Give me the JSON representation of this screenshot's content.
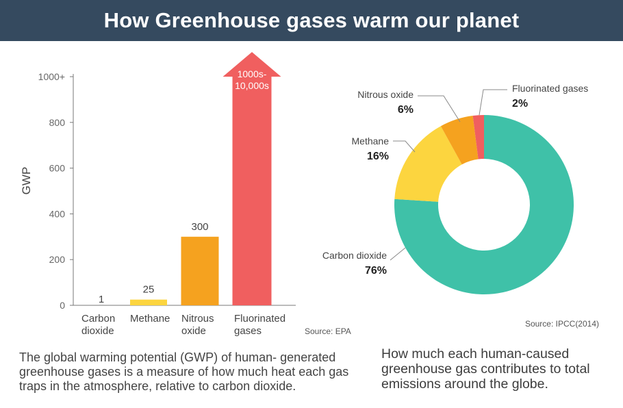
{
  "title": "How Greenhouse gases warm our planet",
  "chart_data": [
    {
      "type": "bar",
      "ylabel": "GWP",
      "ylim": [
        0,
        1000
      ],
      "y_ticks": [
        "0",
        "200",
        "400",
        "600",
        "800",
        "1000+"
      ],
      "categories": [
        {
          "lines": [
            "Carbon",
            "dioxide"
          ]
        },
        {
          "lines": [
            "Methane"
          ]
        },
        {
          "lines": [
            "Nitrous",
            "oxide"
          ]
        },
        {
          "lines": [
            "Fluorinated",
            "gases"
          ]
        }
      ],
      "values": [
        1,
        25,
        300,
        1000
      ],
      "value_labels": [
        {
          "lines": [
            "1"
          ]
        },
        {
          "lines": [
            "25"
          ]
        },
        {
          "lines": [
            "300"
          ]
        },
        {
          "lines": [
            "1000s-",
            "10,000s"
          ]
        }
      ],
      "colors": [
        "#f5b31b",
        "#fcd53f",
        "#f5a21f",
        "#f05f5f"
      ],
      "source": "Source: EPA",
      "caption": "The global warming potential (GWP) of human- generated greenhouse gases is a measure of how much heat each gas traps in the atmosphere, relative to carbon dioxide."
    },
    {
      "type": "pie",
      "donut": true,
      "slices": [
        {
          "name": "Carbon dioxide",
          "value": 76,
          "pct": "76%",
          "color": "#3fc1a8"
        },
        {
          "name": "Methane",
          "value": 16,
          "pct": "16%",
          "color": "#fcd53f"
        },
        {
          "name": "Nitrous oxide",
          "value": 6,
          "pct": "6%",
          "color": "#f5a21f"
        },
        {
          "name": "Fluorinated gases",
          "value": 2,
          "pct": "2%",
          "color": "#f05f5f"
        }
      ],
      "source": "Source: IPCC(2014)",
      "caption": "How much each human-caused greenhouse gas contributes to total emissions around the globe."
    }
  ]
}
